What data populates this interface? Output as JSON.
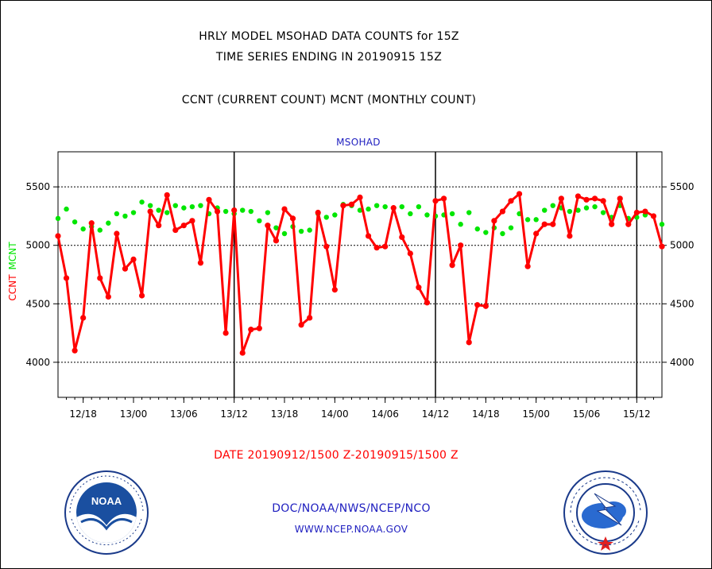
{
  "header": {
    "title_line1": "HRLY MODEL MSOHAD DATA COUNTS for 15Z",
    "title_line2": "TIME SERIES ENDING IN 20190915 15Z",
    "subtitle": "CCNT (CURRENT COUNT) MCNT (MONTHLY COUNT)",
    "plot_label": "MSOHAD"
  },
  "footer": {
    "date_range": "DATE 20190912/1500 Z-20190915/1500 Z",
    "org": "DOC/NOAA/NWS/NCEP/NCO",
    "url": "WWW.NCEP.NOAA.GOV"
  },
  "logos": {
    "left": "noaa-logo",
    "left_word": "NOAA",
    "right": "nws-logo"
  },
  "colors": {
    "ccnt": "#ff0000",
    "mcnt": "#00e600",
    "text": "#000000",
    "footer_date": "#ff0000",
    "footer_org": "#2020c0"
  },
  "chart_data": {
    "type": "line",
    "ylabel_ccnt": "CCNT",
    "ylabel_mcnt": "MCNT",
    "ylim": [
      3700,
      5800
    ],
    "yticks": [
      4000,
      4500,
      5000,
      5500
    ],
    "grid": true,
    "x_tick_labels": [
      "12/18",
      "13/00",
      "13/06",
      "13/12",
      "13/18",
      "14/00",
      "14/06",
      "14/12",
      "14/18",
      "15/00",
      "15/06",
      "15/12"
    ],
    "x_tick_hours": [
      3,
      9,
      15,
      21,
      27,
      33,
      39,
      45,
      51,
      57,
      63,
      69
    ],
    "day_boundaries_hours": [
      21,
      45,
      69
    ],
    "x_start": "20190912/1500",
    "x_end": "20190915/1500",
    "series": [
      {
        "name": "CCNT",
        "style": "line-with-markers",
        "values": [
          5080,
          4720,
          4100,
          4380,
          5190,
          4720,
          4560,
          5100,
          4800,
          4880,
          4570,
          5290,
          5170,
          5430,
          5130,
          5170,
          5210,
          4850,
          5390,
          5290,
          4250,
          5300,
          4080,
          4280,
          4290,
          5170,
          5040,
          5310,
          5230,
          4320,
          4380,
          5280,
          4990,
          4620,
          5340,
          5350,
          5410,
          5080,
          4980,
          4990,
          5320,
          5070,
          4930,
          4640,
          4510,
          5380,
          5400,
          4830,
          5000,
          4170,
          4490,
          4480,
          5210,
          5290,
          5380,
          5440,
          4820,
          5100,
          5180,
          5180,
          5400,
          5080,
          5420,
          5390,
          5400,
          5380,
          5180,
          5400,
          5180,
          5280,
          5290,
          5250,
          4990
        ]
      },
      {
        "name": "MCNT",
        "style": "dotted",
        "values": [
          5230,
          5310,
          5200,
          5140,
          5160,
          5130,
          5190,
          5270,
          5250,
          5280,
          5370,
          5340,
          5300,
          5280,
          5340,
          5320,
          5330,
          5340,
          5270,
          5320,
          5290,
          5270,
          5300,
          5290,
          5210,
          5280,
          5150,
          5100,
          5160,
          5120,
          5130,
          5270,
          5240,
          5260,
          5350,
          5340,
          5300,
          5310,
          5340,
          5330,
          5320,
          5330,
          5270,
          5330,
          5260,
          5250,
          5260,
          5270,
          5180,
          5280,
          5140,
          5110,
          5150,
          5100,
          5150,
          5270,
          5220,
          5220,
          5300,
          5340,
          5320,
          5290,
          5300,
          5320,
          5330,
          5280,
          5240,
          5340,
          5230,
          5240,
          5260,
          5250,
          5180
        ]
      }
    ]
  }
}
